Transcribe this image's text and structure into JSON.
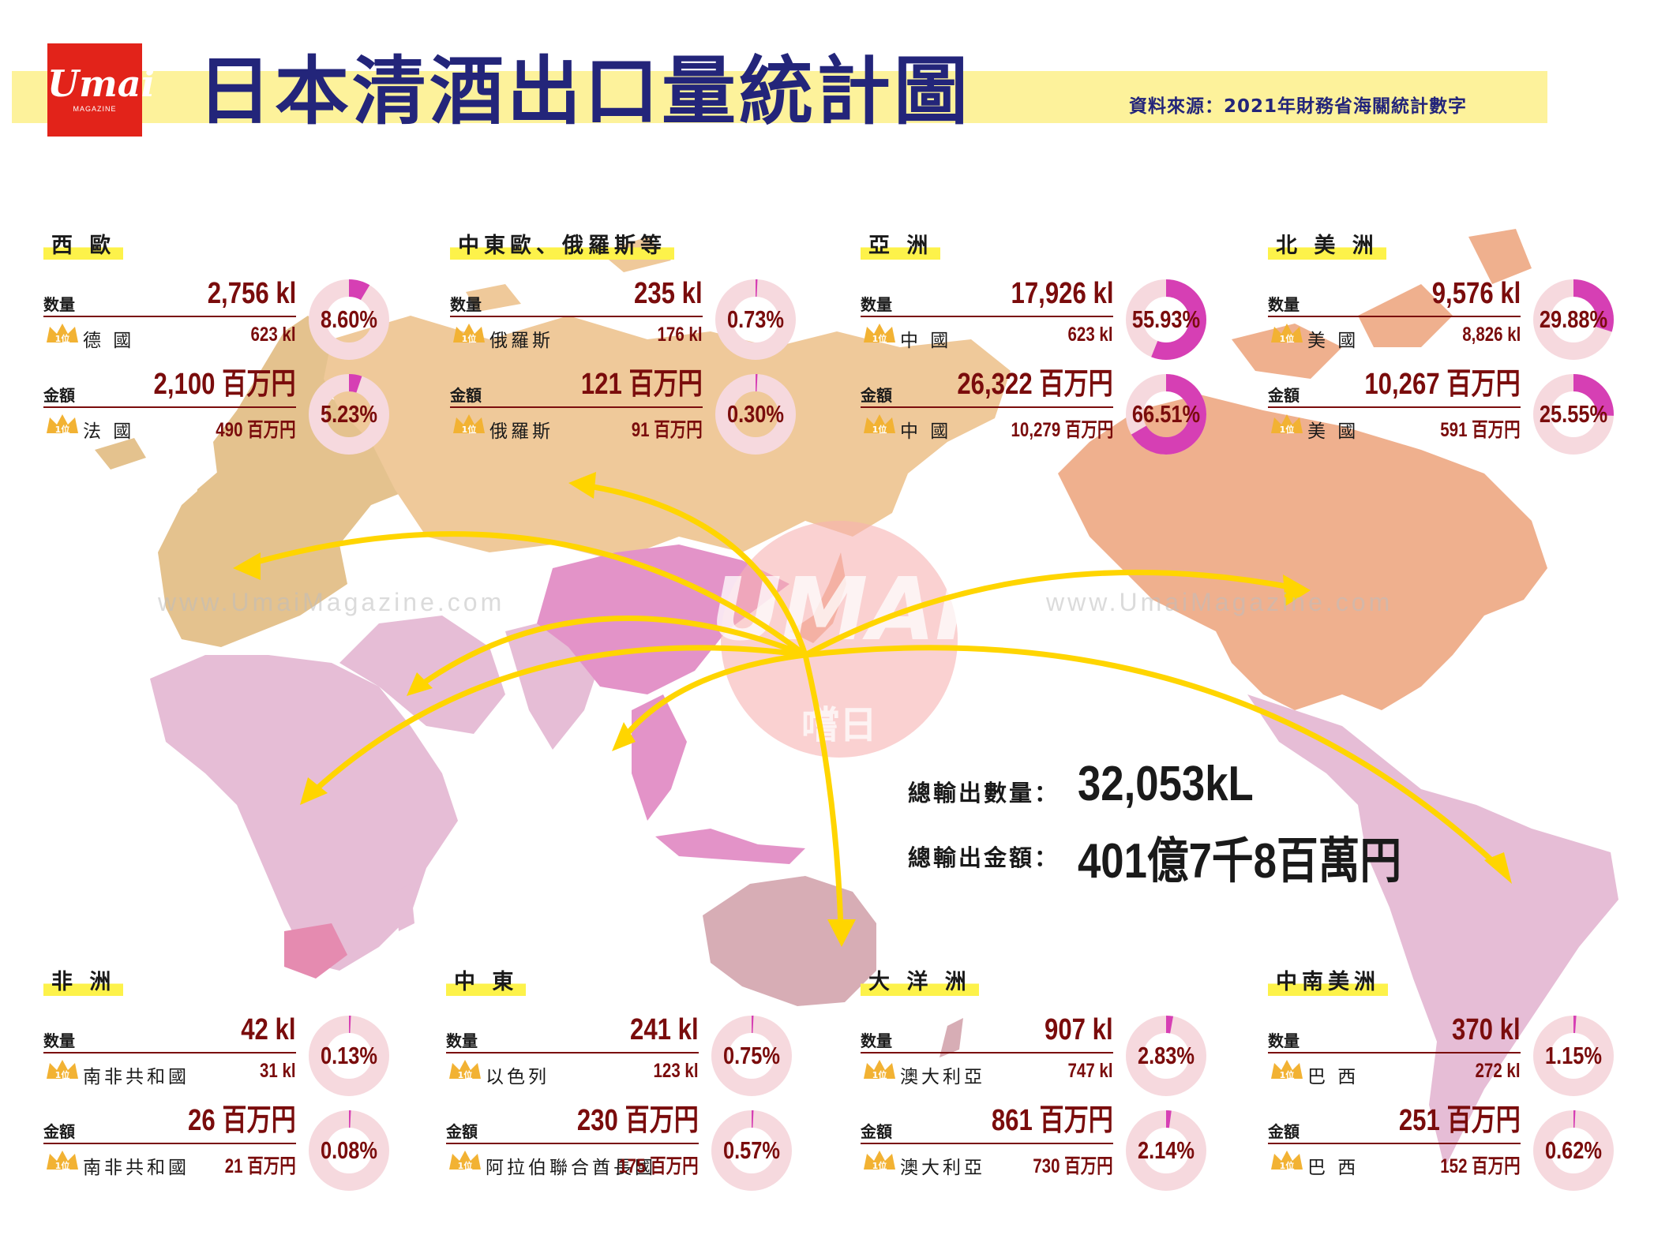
{
  "header": {
    "logo_text": "Umai",
    "logo_sub": "MAGAZINE",
    "title": "日本清酒出口量統計圖",
    "source": "資料來源：2021年財務省海關統計數字"
  },
  "watermark": {
    "url": "www.UmaiMagazine.com",
    "center_logo": "UMAI",
    "center_sub": "嚐日"
  },
  "labels": {
    "volume": "数量",
    "value": "金額",
    "rank_badge": "1位"
  },
  "colors": {
    "header_band": "#fdf29b",
    "title": "#23257a",
    "value_text": "#7a0c0c",
    "arrow": "#ffd500",
    "donut_fill": "#d63fb4",
    "donut_track": "#f6d9de",
    "europe": "#e4c28e",
    "russia": "#efc99a",
    "north_america": "#efb08e",
    "china": "#e393c8",
    "asia_other": "#e6bdd6",
    "africa": "#e6bdd6",
    "oceania": "#d7adb5",
    "south_america": "#e6bdd6"
  },
  "regions": [
    {
      "name": "西 歐",
      "volume": "2,756 kl",
      "volume_share": 8.6,
      "volume_share_label": "8.60%",
      "volume_top_country": "德 國",
      "volume_top_value": "623 kl",
      "value": "2,100 百万円",
      "value_share": 5.23,
      "value_share_label": "5.23%",
      "value_top_country": "法 國",
      "value_top_value": "490 百万円"
    },
    {
      "name": "中東歐、俄羅斯等",
      "volume": "235 kl",
      "volume_share": 0.73,
      "volume_share_label": "0.73%",
      "volume_top_country": "俄羅斯",
      "volume_top_value": "176 kl",
      "value": "121 百万円",
      "value_share": 0.3,
      "value_share_label": "0.30%",
      "value_top_country": "俄羅斯",
      "value_top_value": "91 百万円"
    },
    {
      "name": "亞 洲",
      "volume": "17,926 kl",
      "volume_share": 55.93,
      "volume_share_label": "55.93%",
      "volume_top_country": "中 國",
      "volume_top_value": "623 kl",
      "value": "26,322 百万円",
      "value_share": 66.51,
      "value_share_label": "66.51%",
      "value_top_country": "中 國",
      "value_top_value": "10,279 百万円"
    },
    {
      "name": "北 美 洲",
      "volume": "9,576 kl",
      "volume_share": 29.88,
      "volume_share_label": "29.88%",
      "volume_top_country": "美 國",
      "volume_top_value": "8,826 kl",
      "value": "10,267 百万円",
      "value_share": 25.55,
      "value_share_label": "25.55%",
      "value_top_country": "美 國",
      "value_top_value": "591 百万円"
    },
    {
      "name": "非 洲",
      "volume": "42 kl",
      "volume_share": 0.13,
      "volume_share_label": "0.13%",
      "volume_top_country": "南非共和國",
      "volume_top_value": "31 kl",
      "value": "26 百万円",
      "value_share": 0.08,
      "value_share_label": "0.08%",
      "value_top_country": "南非共和國",
      "value_top_value": "21 百万円"
    },
    {
      "name": "中 東",
      "volume": "241 kl",
      "volume_share": 0.75,
      "volume_share_label": "0.75%",
      "volume_top_country": "以色列",
      "volume_top_value": "123 kl",
      "value": "230 百万円",
      "value_share": 0.57,
      "value_share_label": "0.57%",
      "value_top_country": "阿拉伯聯合酋長國",
      "value_top_value": "175 百万円"
    },
    {
      "name": "大 洋 洲",
      "volume": "907 kl",
      "volume_share": 2.83,
      "volume_share_label": "2.83%",
      "volume_top_country": "澳大利亞",
      "volume_top_value": "747 kl",
      "value": "861 百万円",
      "value_share": 2.14,
      "value_share_label": "2.14%",
      "value_top_country": "澳大利亞",
      "value_top_value": "730 百万円"
    },
    {
      "name": "中南美洲",
      "volume": "370 kl",
      "volume_share": 1.15,
      "volume_share_label": "1.15%",
      "volume_top_country": "巴 西",
      "volume_top_value": "272 kl",
      "value": "251 百万円",
      "value_share": 0.62,
      "value_share_label": "0.62%",
      "value_top_country": "巴 西",
      "value_top_value": "152 百万円"
    }
  ],
  "totals": {
    "volume_label": "總輸出數量：",
    "volume_value": "32,053kL",
    "value_label": "總輸出金額：",
    "value_value": "401億7千8百萬円"
  }
}
